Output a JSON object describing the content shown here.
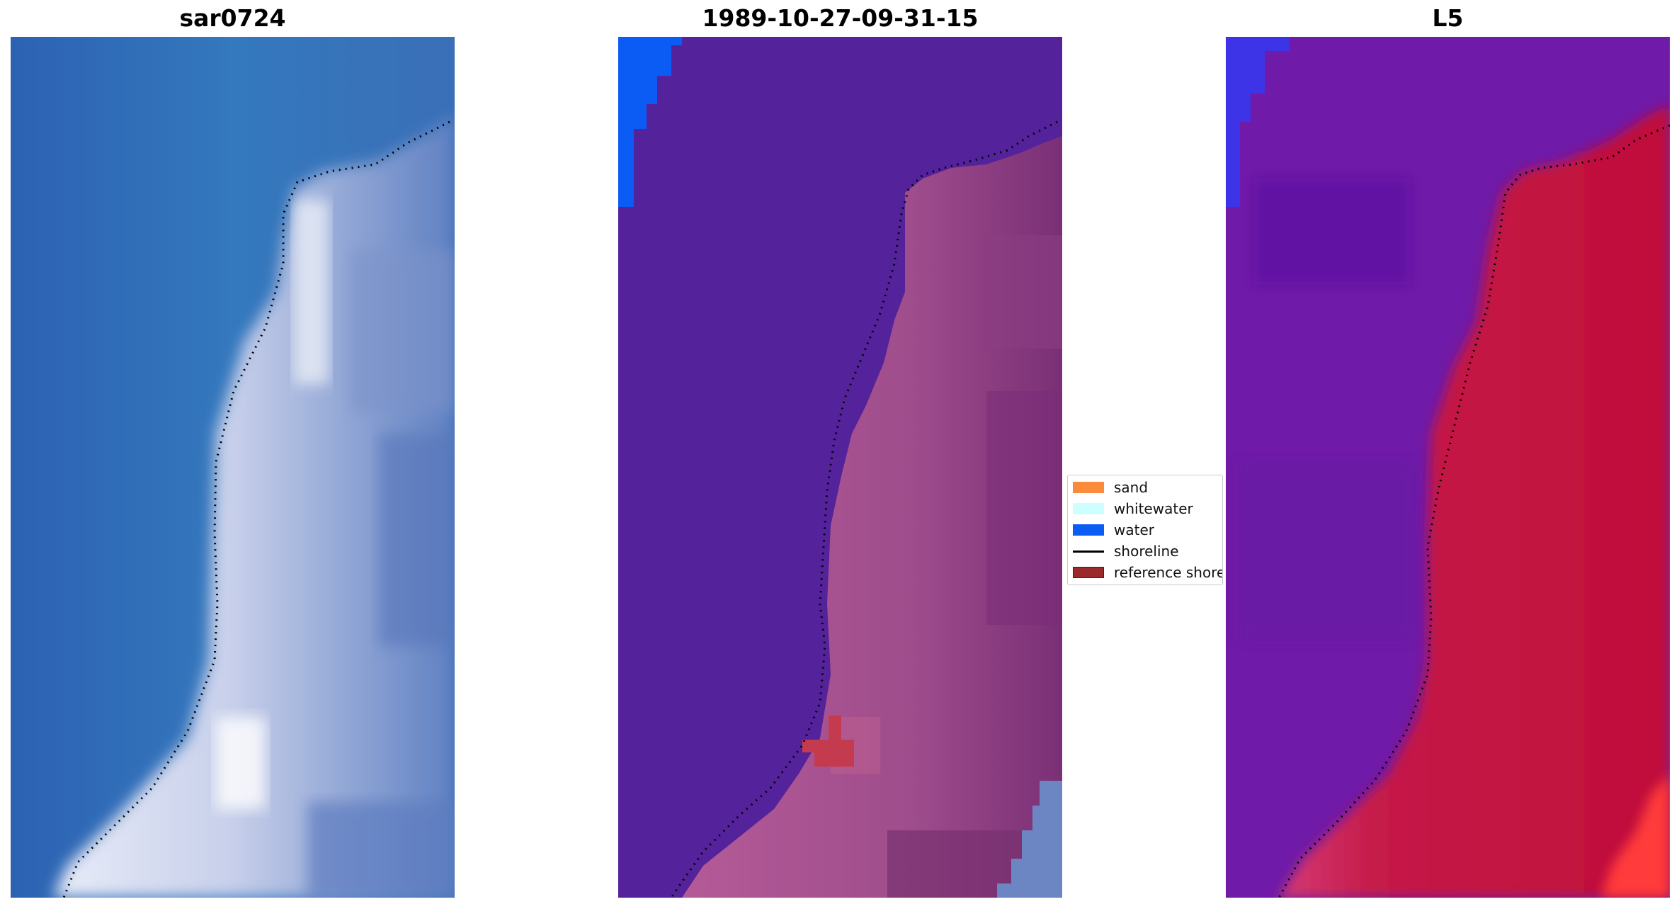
{
  "panels": [
    {
      "title": "sar0724"
    },
    {
      "title": "1989-10-27-09-31-15"
    },
    {
      "title": "L5"
    }
  ],
  "legend": {
    "items": [
      {
        "label": "sand",
        "kind": "patch",
        "color": "#f98b3a"
      },
      {
        "label": "whitewater",
        "kind": "patch",
        "color": "#ccffff"
      },
      {
        "label": "water",
        "kind": "patch",
        "color": "#0a5cf5"
      },
      {
        "label": "shoreline",
        "kind": "line",
        "color": "#000000"
      },
      {
        "label": "reference shoreline",
        "kind": "patch",
        "color": "#9b2b2b"
      }
    ]
  },
  "colors": {
    "rgb_sea": "#3a6fb7",
    "rgb_land": "#c9d2ec",
    "class_water_bg": "#54229a",
    "class_land": "#9f4d8c",
    "index_water": "#6f1aa8",
    "index_land": "#c2113e"
  }
}
